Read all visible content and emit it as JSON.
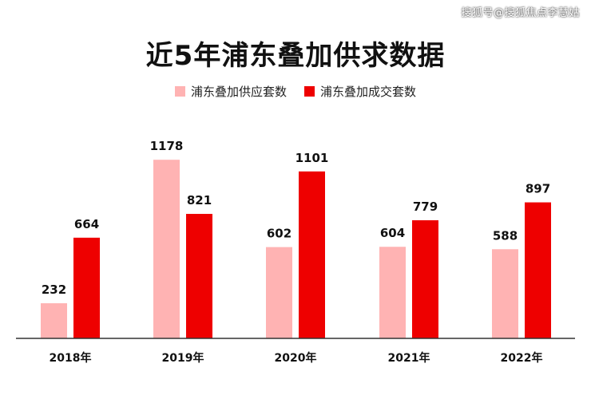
{
  "watermark": "搜狐号@搜狐焦点李慧姑",
  "colors": {
    "supply": "#ffb3b3",
    "deal": "#ee0000",
    "axis": "#333333"
  },
  "chart_data": {
    "type": "bar",
    "title": "近5年浦东叠加供求数据",
    "categories": [
      "2018年",
      "2019年",
      "2020年",
      "2021年",
      "2022年"
    ],
    "series": [
      {
        "name": "浦东叠加供应套数",
        "values": [
          232,
          1178,
          602,
          604,
          588
        ]
      },
      {
        "name": "浦东叠加成交套数",
        "values": [
          664,
          821,
          1101,
          779,
          897
        ]
      }
    ],
    "xlabel": "",
    "ylabel": "",
    "ylim": [
      0,
      1200
    ],
    "grid": false,
    "legend": "top-center"
  }
}
